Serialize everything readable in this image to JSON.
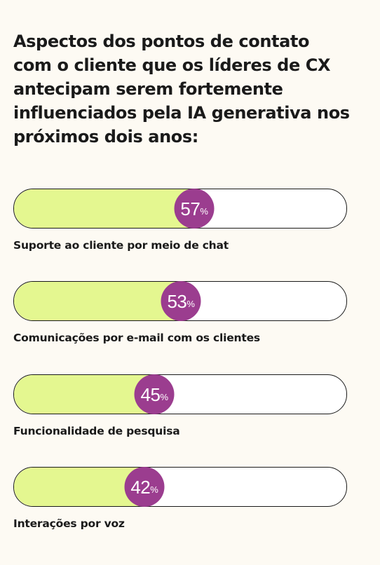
{
  "title": "Aspectos dos pontos de contato com o cliente que os líderes de CX antecipam serem fortemente influenciados pela IA generativa nos próximos dois anos:",
  "colors": {
    "background": "#fdfaf3",
    "fill": "#e4f790",
    "bubble": "#9b3d8f",
    "track_border": "#1a1a1a"
  },
  "chart_data": {
    "type": "bar",
    "orientation": "horizontal",
    "categories": [
      "Suporte ao cliente por meio de chat",
      "Comunicações por e-mail com os clientes",
      "Funcionalidade de pesquisa",
      "Interações por voz"
    ],
    "values": [
      57,
      53,
      45,
      42
    ],
    "value_labels": [
      "57",
      "53",
      "45",
      "42"
    ],
    "unit": "%",
    "title": "Aspectos dos pontos de contato com o cliente que os líderes de CX antecipam serem fortemente influenciados pela IA generativa nos próximos dois anos:",
    "xlim": [
      0,
      100
    ],
    "grid": false,
    "legend": "none"
  }
}
